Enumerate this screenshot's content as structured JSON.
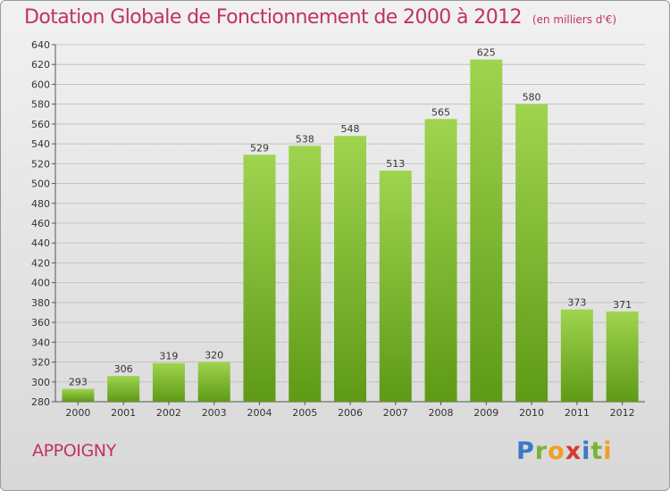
{
  "header": {
    "title": "Dotation Globale de Fonctionnement de 2000 à 2012",
    "unit_note": "(en milliers d'€)"
  },
  "footer": {
    "commune": "APPOIGNY",
    "brand_letters": [
      {
        "ch": "P",
        "color": "#3a78c8"
      },
      {
        "ch": "r",
        "color": "#7ab532"
      },
      {
        "ch": "o",
        "color": "#f0a020"
      },
      {
        "ch": "x",
        "color": "#d63a2e"
      },
      {
        "ch": "i",
        "color": "#3a78c8"
      },
      {
        "ch": "t",
        "color": "#7ab532"
      },
      {
        "ch": "i",
        "color": "#f0a020"
      }
    ]
  },
  "chart_data": {
    "type": "bar",
    "title": "Dotation Globale de Fonctionnement de 2000 à 2012",
    "subtitle": "(en milliers d'€)",
    "xlabel": "",
    "ylabel": "",
    "categories": [
      "2000",
      "2001",
      "2002",
      "2003",
      "2004",
      "2005",
      "2006",
      "2007",
      "2008",
      "2009",
      "2010",
      "2011",
      "2012"
    ],
    "values": [
      293,
      306,
      319,
      320,
      529,
      538,
      548,
      513,
      565,
      625,
      580,
      373,
      371
    ],
    "ylim": [
      280,
      640
    ],
    "yticks": [
      280,
      300,
      320,
      340,
      360,
      380,
      400,
      420,
      440,
      460,
      480,
      500,
      520,
      540,
      560,
      580,
      600,
      620,
      640
    ],
    "grid": true,
    "bar_color": "#8cc63f",
    "bar_color_dark": "#5e9a16",
    "title_color": "#c2306a"
  }
}
